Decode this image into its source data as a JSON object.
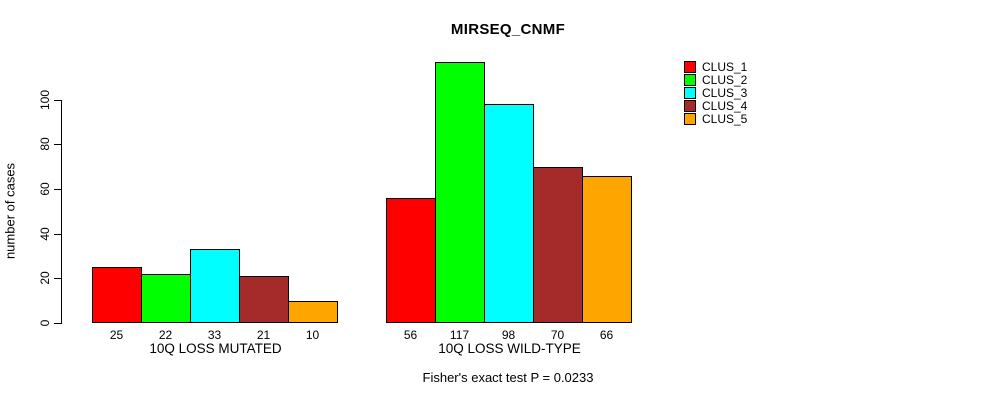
{
  "chart_data": {
    "type": "bar",
    "title": "MIRSEQ_CNMF",
    "ylabel": "number of cases",
    "xlabel": "",
    "yticks": [
      0,
      20,
      40,
      60,
      80,
      100
    ],
    "ylim": [
      0,
      118
    ],
    "grid": false,
    "legend_position": "right",
    "legend": [
      {
        "label": "CLUS_1",
        "color": "#FF0000"
      },
      {
        "label": "CLUS_2",
        "color": "#00FF00"
      },
      {
        "label": "CLUS_3",
        "color": "#00FFFF"
      },
      {
        "label": "CLUS_4",
        "color": "#A52A2A"
      },
      {
        "label": "CLUS_5",
        "color": "#FFA500"
      }
    ],
    "groups": [
      {
        "label": "10Q LOSS MUTATED",
        "values": [
          25,
          22,
          33,
          21,
          10
        ]
      },
      {
        "label": "10Q LOSS WILD-TYPE",
        "values": [
          56,
          117,
          98,
          70,
          66
        ]
      }
    ],
    "footnote": "Fisher's exact test P = 0.0233"
  }
}
